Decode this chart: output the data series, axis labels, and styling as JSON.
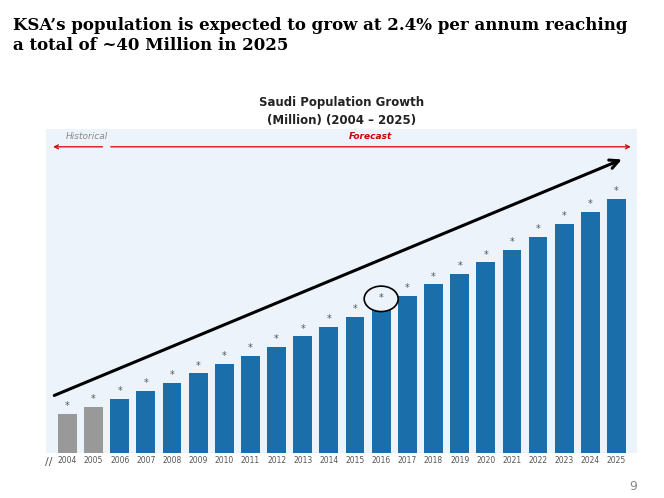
{
  "title": "Saudi Population Growth",
  "subtitle": "(Million) (2004 – 2025)",
  "heading_line1": "KSA’s population is expected to grow at 2.4% per annum reaching",
  "heading_line2": "a total of ~40 Million in 2025",
  "years": [
    "2004",
    "2005",
    "2006",
    "2007",
    "2008",
    "2009",
    "2010",
    "2011",
    "2012",
    "2013",
    "2014",
    "2015",
    "2016",
    "2017",
    "2018",
    "2019",
    "2020",
    "2021",
    "2022",
    "2023",
    "2024",
    "2025"
  ],
  "values": [
    21.4,
    22.0,
    22.7,
    23.4,
    24.1,
    24.9,
    25.7,
    26.4,
    27.2,
    28.1,
    28.9,
    29.8,
    30.7,
    31.6,
    32.6,
    33.5,
    34.5,
    35.6,
    36.7,
    37.8,
    38.9,
    40.0
  ],
  "bar_colors": [
    "#999999",
    "#999999",
    "#1a6fab",
    "#1a6fab",
    "#1a6fab",
    "#1a6fab",
    "#1a6fab",
    "#1a6fab",
    "#1a6fab",
    "#1a6fab",
    "#1a6fab",
    "#1a6fab",
    "#1a6fab",
    "#1a6fab",
    "#1a6fab",
    "#1a6fab",
    "#1a6fab",
    "#1a6fab",
    "#1a6fab",
    "#1a6fab",
    "#1a6fab",
    "#1a6fab"
  ],
  "historical_label": "Historical",
  "forecast_label": "Forecast",
  "historical_text_color": "#888888",
  "forecast_text_color": "#cc0000",
  "red_line_color": "#cc0000",
  "trend_line_color": "#000000",
  "page_bg": "#ffffff",
  "chart_bg": "#edf3fb",
  "heading_color": "#000000",
  "circle_bar_index": 12,
  "ymin": 18.0,
  "ymax": 46.0,
  "page_number": "9",
  "star_color": "#555555",
  "star_fontsize": 7
}
